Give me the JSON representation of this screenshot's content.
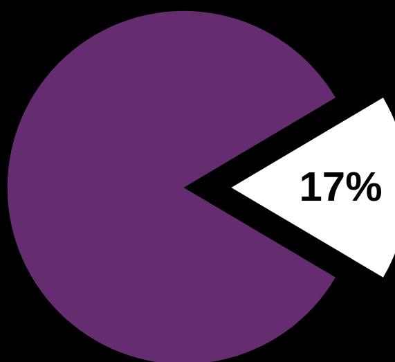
{
  "chart_data": {
    "type": "pie",
    "values": [
      17,
      83
    ],
    "value_labels": [
      "17%",
      null
    ],
    "colors": [
      "#ffffff",
      "#652d6f"
    ]
  }
}
